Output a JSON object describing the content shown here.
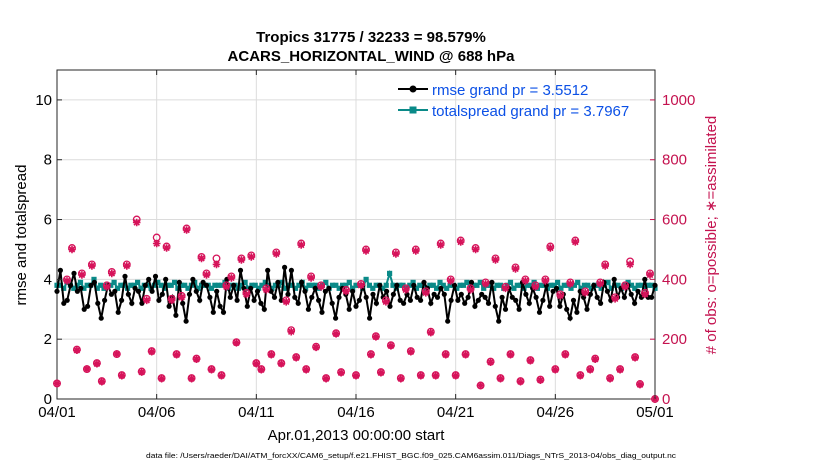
{
  "chart_data": {
    "type": "line",
    "title_line1": "Tropics 31775 / 32233 = 98.579%",
    "title_line2": "ACARS_HORIZONTAL_WIND @ 688 hPa",
    "xlabel": "Apr.01,2013 00:00:00 start",
    "ylabel_left": "rmse and totalspread",
    "ylabel_right": "# of obs: o=possible; ∗=assimilated",
    "footnote": "data file: /Users/raeder/DAI/ATM_forcXX/CAM6_setup/f.e21.FHIST_BGC.f09_025.CAM6assim.011/Diags_NTrS_2013-04/obs_diag_output.nc",
    "xlim": [
      0,
      30
    ],
    "ylim_left": [
      0,
      11
    ],
    "ylim_right": [
      0,
      1100
    ],
    "x_ticks": [
      0,
      5,
      10,
      15,
      20,
      25,
      30
    ],
    "x_tick_labels": [
      "04/01",
      "04/06",
      "04/11",
      "04/16",
      "04/21",
      "04/26",
      "05/01"
    ],
    "y_ticks_left": [
      0,
      2,
      4,
      6,
      8,
      10
    ],
    "y_tick_labels_left": [
      "0",
      "2",
      "4",
      "6",
      "8",
      "10"
    ],
    "y_ticks_right": [
      0,
      200,
      400,
      600,
      800,
      1000
    ],
    "y_tick_labels_right": [
      "0",
      "200",
      "400",
      "600",
      "800",
      "1000"
    ],
    "grid": true,
    "legend_position": "top-right",
    "colors": {
      "rmse": "#000000",
      "totalspread": "#0a8a88",
      "obs": "#d6135a",
      "right_axis": "#c4124f",
      "legend_text": "#0b50e6"
    },
    "series": [
      {
        "name": "rmse",
        "legend_label": "rmse grand pr = 3.5512",
        "axis": "left",
        "values": [
          3.6,
          4.3,
          3.2,
          3.3,
          3.8,
          4.2,
          3.6,
          3.7,
          3.0,
          3.1,
          3.8,
          3.9,
          3.2,
          2.7,
          3.3,
          3.8,
          3.5,
          3.6,
          2.9,
          3.3,
          4.1,
          3.5,
          3.2,
          3.7,
          3.6,
          3.2,
          3.8,
          4.0,
          3.6,
          4.1,
          3.3,
          3.5,
          4.0,
          3.1,
          3.4,
          2.8,
          3.9,
          3.2,
          2.6,
          3.5,
          4.0,
          3.6,
          3.3,
          3.9,
          3.8,
          3.4,
          2.9,
          3.6,
          3.1,
          2.9,
          4.0,
          3.4,
          3.8,
          3.3,
          4.3,
          3.7,
          3.1,
          3.7,
          3.3,
          3.6,
          3.2,
          3.0,
          4.3,
          3.6,
          3.4,
          3.9,
          3.3,
          4.4,
          3.5,
          4.3,
          3.4,
          3.2,
          3.9,
          3.6,
          3.0,
          3.4,
          3.7,
          3.3,
          2.9,
          3.6,
          3.7,
          3.2,
          2.7,
          3.4,
          3.7,
          3.5,
          3.0,
          3.6,
          3.1,
          3.3,
          3.8,
          3.4,
          2.7,
          3.5,
          3.2,
          3.8,
          3.4,
          3.6,
          3.1,
          3.5,
          3.8,
          3.3,
          3.2,
          3.5,
          3.3,
          3.8,
          3.4,
          3.3,
          3.9,
          3.7,
          3.2,
          3.5,
          3.4,
          3.7,
          3.5,
          2.6,
          3.3,
          3.8,
          3.3,
          3.5,
          3.2,
          3.4,
          3.9,
          3.1,
          3.3,
          3.5,
          3.4,
          3.2,
          3.9,
          3.1,
          2.6,
          3.4,
          3.0,
          3.7,
          3.4,
          3.3,
          3.0,
          3.9,
          3.5,
          3.2,
          3.7,
          3.4,
          2.9,
          3.3,
          3.8,
          3.1,
          3.6,
          3.7,
          3.1,
          3.5,
          3.0,
          2.7,
          3.3,
          2.9,
          3.6,
          3.4,
          3.0,
          3.5,
          3.8,
          3.4,
          3.2,
          3.9,
          3.6,
          3.3,
          4.0,
          3.4,
          3.7,
          3.4,
          3.8,
          3.5,
          3.2,
          3.6,
          3.4,
          4.0,
          3.4,
          3.4,
          3.8
        ]
      },
      {
        "name": "totalspread",
        "legend_label": "totalspread grand pr = 3.7967",
        "axis": "left",
        "values": [
          3.8,
          3.8,
          3.7,
          3.9,
          3.8,
          3.7,
          3.8,
          3.9,
          3.7,
          3.8,
          3.8,
          4.0,
          3.7,
          3.8,
          3.7,
          3.8,
          3.8,
          3.9,
          3.7,
          3.8,
          3.8,
          3.7,
          3.8,
          3.8,
          3.9,
          3.7,
          3.8,
          3.8,
          3.7,
          3.8,
          3.9,
          3.8,
          3.7,
          3.8,
          3.8,
          3.9,
          3.7,
          3.8,
          3.8,
          3.7,
          3.8,
          3.9,
          3.7,
          3.8,
          3.8,
          3.8,
          3.7,
          3.8,
          3.8,
          3.8,
          3.9,
          3.7,
          3.8,
          3.8,
          3.7,
          3.8,
          3.9,
          3.7,
          3.8,
          3.8,
          3.7,
          3.8,
          3.9,
          3.8,
          3.7,
          3.8,
          3.8,
          3.9,
          3.7,
          3.8,
          3.8,
          3.7,
          3.8,
          3.9,
          3.7,
          3.8,
          3.8,
          3.8,
          3.7,
          3.8,
          3.9,
          3.7,
          3.8,
          3.8,
          3.7,
          3.8,
          3.8,
          3.9,
          3.7,
          3.8,
          3.8,
          3.7,
          4.0,
          3.8,
          3.7,
          3.8,
          3.8,
          3.7,
          3.8,
          4.2,
          3.8,
          3.7,
          3.8,
          3.8,
          3.7,
          3.8,
          3.9,
          3.7,
          3.8,
          3.8,
          3.7,
          3.8,
          3.8,
          3.7,
          3.9,
          3.8,
          3.7,
          3.8,
          3.8,
          3.7,
          3.8,
          3.8,
          3.9,
          3.7,
          3.8,
          3.8,
          3.9,
          3.7,
          3.8,
          3.8,
          3.7,
          3.8,
          3.8,
          3.7,
          3.8,
          3.9,
          3.7,
          3.8,
          3.8,
          3.7,
          3.8,
          3.8,
          3.9,
          3.7,
          3.8,
          3.8,
          3.7,
          3.8,
          3.8,
          3.9,
          3.7,
          3.8,
          3.8,
          3.7,
          3.8,
          3.9,
          3.7,
          3.8,
          3.8,
          3.7,
          3.8,
          3.8,
          3.7,
          3.8,
          3.9,
          3.7,
          3.8,
          3.8,
          3.7,
          3.8,
          3.9,
          3.8,
          3.7,
          3.8,
          3.8,
          3.7,
          3.8,
          3.8,
          3.7
        ]
      }
    ],
    "obs_possible": {
      "name": "possible",
      "axis": "right",
      "marker": "o",
      "points": [
        [
          0.0,
          52
        ],
        [
          0.5,
          400
        ],
        [
          0.75,
          505
        ],
        [
          1.0,
          165
        ],
        [
          1.25,
          420
        ],
        [
          1.5,
          100
        ],
        [
          1.75,
          450
        ],
        [
          2.0,
          120
        ],
        [
          2.25,
          60
        ],
        [
          2.5,
          380
        ],
        [
          2.75,
          425
        ],
        [
          3.0,
          150
        ],
        [
          3.25,
          80
        ],
        [
          3.5,
          450
        ],
        [
          4.0,
          600
        ],
        [
          4.25,
          92
        ],
        [
          4.5,
          335
        ],
        [
          4.75,
          160
        ],
        [
          5.0,
          540
        ],
        [
          5.25,
          70
        ],
        [
          5.5,
          510
        ],
        [
          5.75,
          335
        ],
        [
          6.0,
          150
        ],
        [
          6.25,
          345
        ],
        [
          6.5,
          570
        ],
        [
          6.75,
          70
        ],
        [
          7.0,
          135
        ],
        [
          7.25,
          475
        ],
        [
          7.5,
          420
        ],
        [
          7.75,
          100
        ],
        [
          8.0,
          470
        ],
        [
          8.25,
          80
        ],
        [
          8.5,
          380
        ],
        [
          8.75,
          410
        ],
        [
          9.0,
          190
        ],
        [
          9.25,
          470
        ],
        [
          9.5,
          355
        ],
        [
          9.75,
          480
        ],
        [
          10.0,
          120
        ],
        [
          10.25,
          100
        ],
        [
          10.5,
          370
        ],
        [
          10.75,
          150
        ],
        [
          11.0,
          490
        ],
        [
          11.25,
          120
        ],
        [
          11.5,
          330
        ],
        [
          11.75,
          230
        ],
        [
          12.0,
          140
        ],
        [
          12.25,
          520
        ],
        [
          12.5,
          100
        ],
        [
          12.75,
          410
        ],
        [
          13.0,
          175
        ],
        [
          13.25,
          380
        ],
        [
          13.5,
          70
        ],
        [
          14.0,
          220
        ],
        [
          14.25,
          90
        ],
        [
          14.5,
          365
        ],
        [
          15.0,
          80
        ],
        [
          15.25,
          385
        ],
        [
          15.5,
          500
        ],
        [
          15.75,
          150
        ],
        [
          16.0,
          210
        ],
        [
          16.25,
          90
        ],
        [
          16.5,
          330
        ],
        [
          16.75,
          180
        ],
        [
          17.0,
          490
        ],
        [
          17.25,
          70
        ],
        [
          17.5,
          370
        ],
        [
          17.75,
          160
        ],
        [
          18.0,
          500
        ],
        [
          18.25,
          80
        ],
        [
          18.5,
          360
        ],
        [
          18.75,
          225
        ],
        [
          19.0,
          80
        ],
        [
          19.25,
          520
        ],
        [
          19.5,
          150
        ],
        [
          19.75,
          400
        ],
        [
          20.0,
          80
        ],
        [
          20.25,
          530
        ],
        [
          20.5,
          150
        ],
        [
          20.75,
          370
        ],
        [
          21.0,
          505
        ],
        [
          21.25,
          45
        ],
        [
          21.5,
          390
        ],
        [
          21.75,
          125
        ],
        [
          22.0,
          470
        ],
        [
          22.25,
          70
        ],
        [
          22.5,
          375
        ],
        [
          22.75,
          150
        ],
        [
          23.0,
          440
        ],
        [
          23.25,
          60
        ],
        [
          23.5,
          400
        ],
        [
          23.75,
          130
        ],
        [
          24.0,
          380
        ],
        [
          24.25,
          65
        ],
        [
          24.5,
          400
        ],
        [
          24.75,
          510
        ],
        [
          25.0,
          100
        ],
        [
          25.25,
          350
        ],
        [
          25.5,
          150
        ],
        [
          25.75,
          390
        ],
        [
          26.0,
          530
        ],
        [
          26.25,
          80
        ],
        [
          26.5,
          360
        ],
        [
          26.75,
          100
        ],
        [
          27.0,
          135
        ],
        [
          27.25,
          390
        ],
        [
          27.5,
          450
        ],
        [
          27.75,
          70
        ],
        [
          28.0,
          340
        ],
        [
          28.25,
          100
        ],
        [
          28.5,
          380
        ],
        [
          28.75,
          460
        ],
        [
          29.0,
          140
        ],
        [
          29.25,
          50
        ],
        [
          29.5,
          355
        ],
        [
          29.75,
          420
        ],
        [
          30.0,
          0
        ]
      ]
    },
    "obs_assimilated": {
      "name": "assimilated",
      "axis": "right",
      "marker": "*",
      "points": [
        [
          0.0,
          52
        ],
        [
          0.5,
          395
        ],
        [
          0.75,
          500
        ],
        [
          1.0,
          163
        ],
        [
          1.25,
          415
        ],
        [
          1.5,
          100
        ],
        [
          1.75,
          445
        ],
        [
          2.0,
          118
        ],
        [
          2.25,
          58
        ],
        [
          2.5,
          375
        ],
        [
          2.75,
          420
        ],
        [
          3.0,
          150
        ],
        [
          3.25,
          78
        ],
        [
          3.5,
          445
        ],
        [
          4.0,
          590
        ],
        [
          4.25,
          90
        ],
        [
          4.5,
          330
        ],
        [
          4.75,
          158
        ],
        [
          5.0,
          520
        ],
        [
          5.25,
          68
        ],
        [
          5.5,
          505
        ],
        [
          5.75,
          330
        ],
        [
          6.0,
          148
        ],
        [
          6.25,
          340
        ],
        [
          6.5,
          565
        ],
        [
          6.75,
          68
        ],
        [
          7.0,
          133
        ],
        [
          7.25,
          470
        ],
        [
          7.5,
          415
        ],
        [
          7.75,
          98
        ],
        [
          8.0,
          450
        ],
        [
          8.25,
          78
        ],
        [
          8.5,
          375
        ],
        [
          8.75,
          405
        ],
        [
          9.0,
          188
        ],
        [
          9.25,
          465
        ],
        [
          9.5,
          350
        ],
        [
          9.75,
          475
        ],
        [
          10.0,
          118
        ],
        [
          10.25,
          98
        ],
        [
          10.5,
          365
        ],
        [
          10.75,
          148
        ],
        [
          11.0,
          485
        ],
        [
          11.25,
          118
        ],
        [
          11.5,
          325
        ],
        [
          11.75,
          225
        ],
        [
          12.0,
          138
        ],
        [
          12.25,
          515
        ],
        [
          12.5,
          98
        ],
        [
          12.75,
          405
        ],
        [
          13.0,
          173
        ],
        [
          13.25,
          375
        ],
        [
          13.5,
          68
        ],
        [
          14.0,
          218
        ],
        [
          14.25,
          88
        ],
        [
          14.5,
          360
        ],
        [
          15.0,
          78
        ],
        [
          15.25,
          380
        ],
        [
          15.5,
          495
        ],
        [
          15.75,
          148
        ],
        [
          16.0,
          208
        ],
        [
          16.25,
          88
        ],
        [
          16.5,
          325
        ],
        [
          16.75,
          178
        ],
        [
          17.0,
          485
        ],
        [
          17.25,
          68
        ],
        [
          17.5,
          365
        ],
        [
          17.75,
          158
        ],
        [
          18.0,
          495
        ],
        [
          18.25,
          78
        ],
        [
          18.5,
          355
        ],
        [
          18.75,
          222
        ],
        [
          19.0,
          78
        ],
        [
          19.25,
          515
        ],
        [
          19.5,
          148
        ],
        [
          19.75,
          395
        ],
        [
          20.0,
          78
        ],
        [
          20.25,
          525
        ],
        [
          20.5,
          148
        ],
        [
          20.75,
          365
        ],
        [
          21.0,
          500
        ],
        [
          21.25,
          45
        ],
        [
          21.5,
          385
        ],
        [
          21.75,
          123
        ],
        [
          22.0,
          465
        ],
        [
          22.25,
          68
        ],
        [
          22.5,
          370
        ],
        [
          22.75,
          148
        ],
        [
          23.0,
          435
        ],
        [
          23.25,
          58
        ],
        [
          23.5,
          395
        ],
        [
          23.75,
          128
        ],
        [
          24.0,
          375
        ],
        [
          24.25,
          63
        ],
        [
          24.5,
          395
        ],
        [
          24.75,
          505
        ],
        [
          25.0,
          98
        ],
        [
          25.25,
          345
        ],
        [
          25.5,
          148
        ],
        [
          25.75,
          385
        ],
        [
          26.0,
          525
        ],
        [
          26.25,
          78
        ],
        [
          26.5,
          355
        ],
        [
          26.75,
          98
        ],
        [
          27.0,
          133
        ],
        [
          27.25,
          385
        ],
        [
          27.5,
          445
        ],
        [
          27.75,
          68
        ],
        [
          28.0,
          335
        ],
        [
          28.25,
          98
        ],
        [
          28.5,
          375
        ],
        [
          28.75,
          450
        ],
        [
          29.0,
          138
        ],
        [
          29.25,
          48
        ],
        [
          29.5,
          350
        ],
        [
          29.75,
          415
        ],
        [
          30.0,
          0
        ]
      ]
    }
  }
}
